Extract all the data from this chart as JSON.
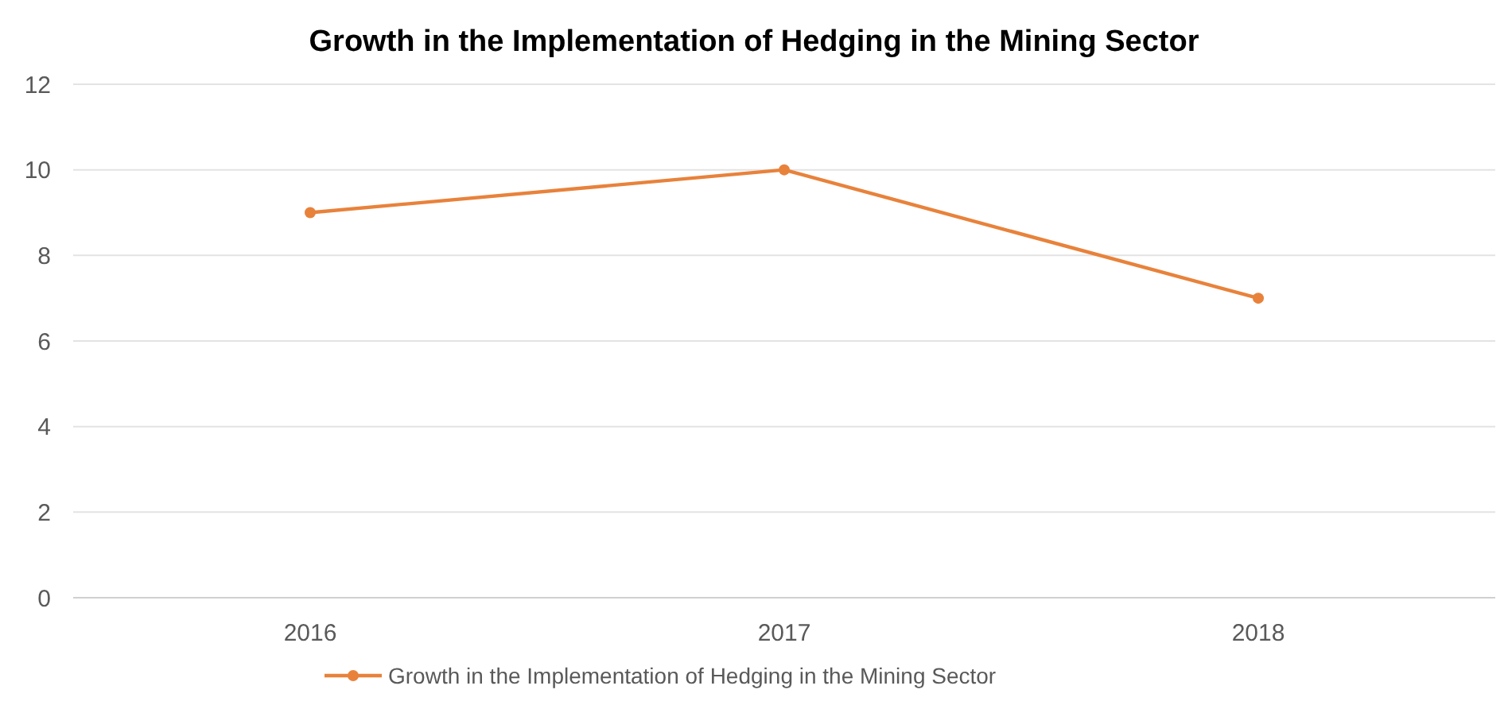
{
  "chart_data": {
    "type": "line",
    "title": "Growth in the Implementation of Hedging in the Mining Sector",
    "categories": [
      "2016",
      "2017",
      "2018"
    ],
    "series": [
      {
        "name": "Growth in the Implementation of Hedging in the Mining Sector",
        "color": "#e8823b",
        "values": [
          9,
          10,
          7
        ]
      }
    ],
    "ylim": [
      0,
      12
    ],
    "yticks": [
      0,
      2,
      4,
      6,
      8,
      10,
      12
    ],
    "grid": "y",
    "legend": "bottom",
    "marker": "circle",
    "line_style": "solid"
  }
}
